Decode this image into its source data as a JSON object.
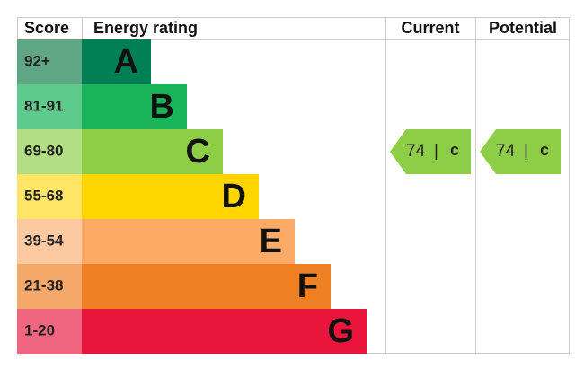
{
  "header": {
    "score": "Score",
    "rating": "Energy rating",
    "current": "Current",
    "potential": "Potential"
  },
  "bands": [
    {
      "score": "92+",
      "letter": "A",
      "color": "#008054",
      "score_color": "#5fa684"
    },
    {
      "score": "81-91",
      "letter": "B",
      "color": "#19b459",
      "score_color": "#5ecb8c"
    },
    {
      "score": "69-80",
      "letter": "C",
      "color": "#8dce46",
      "score_color": "#b3df84"
    },
    {
      "score": "55-68",
      "letter": "D",
      "color": "#ffd500",
      "score_color": "#ffe566"
    },
    {
      "score": "39-54",
      "letter": "E",
      "color": "#fcaa65",
      "score_color": "#fdc9a0"
    },
    {
      "score": "21-38",
      "letter": "F",
      "color": "#ef8023",
      "score_color": "#f4a86a"
    },
    {
      "score": "1-20",
      "letter": "G",
      "color": "#e9153b",
      "score_color": "#f06580"
    }
  ],
  "current": {
    "score": 74,
    "separator": "|",
    "letter": "c"
  },
  "potential": {
    "score": 74,
    "separator": "|",
    "letter": "c"
  }
}
